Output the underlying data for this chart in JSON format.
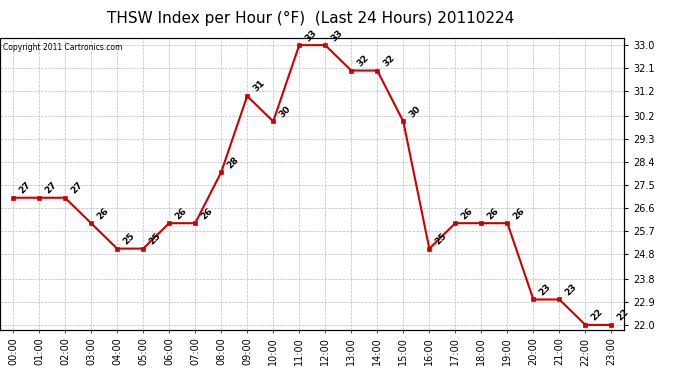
{
  "title": "THSW Index per Hour (°F)  (Last 24 Hours) 20110224",
  "copyright": "Copyright 2011 Cartronics.com",
  "hours": [
    "00:00",
    "01:00",
    "02:00",
    "03:00",
    "04:00",
    "05:00",
    "06:00",
    "07:00",
    "08:00",
    "09:00",
    "10:00",
    "11:00",
    "12:00",
    "13:00",
    "14:00",
    "15:00",
    "16:00",
    "17:00",
    "18:00",
    "19:00",
    "20:00",
    "21:00",
    "22:00",
    "23:00"
  ],
  "values": [
    27,
    27,
    27,
    26,
    25,
    25,
    26,
    26,
    28,
    31,
    30,
    33,
    33,
    32,
    32,
    30,
    25,
    26,
    26,
    26,
    23,
    23,
    22,
    22
  ],
  "line_color": "#cc0000",
  "marker_color": "#cc0000",
  "bg_color": "#ffffff",
  "grid_color": "#bbbbbb",
  "ylim_min": 22.0,
  "ylim_max": 33.0,
  "ytick_values": [
    22.0,
    22.9,
    23.8,
    24.8,
    25.7,
    26.6,
    27.5,
    28.4,
    29.3,
    30.2,
    31.2,
    32.1,
    33.0
  ],
  "title_fontsize": 11,
  "label_fontsize": 6.5,
  "tick_fontsize": 7,
  "annot_fontsize": 6.5
}
